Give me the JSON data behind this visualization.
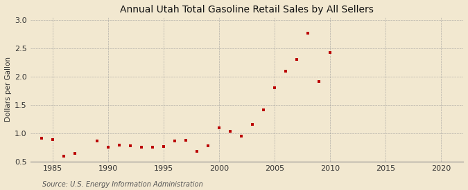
{
  "title": "Annual Utah Total Gasoline Retail Sales by All Sellers",
  "ylabel": "Dollars per Gallon",
  "source": "Source: U.S. Energy Information Administration",
  "background_color": "#f2e8d0",
  "plot_bg_color": "#f2e8d0",
  "marker_color": "#bb0000",
  "xlim": [
    1983,
    2022
  ],
  "ylim": [
    0.5,
    3.05
  ],
  "xticks": [
    1985,
    1990,
    1995,
    2000,
    2005,
    2010,
    2015,
    2020
  ],
  "yticks": [
    0.5,
    1.0,
    1.5,
    2.0,
    2.5,
    3.0
  ],
  "years": [
    1984,
    1985,
    1986,
    1987,
    1989,
    1990,
    1991,
    1992,
    1993,
    1994,
    1995,
    1996,
    1997,
    1998,
    1999,
    2000,
    2001,
    2002,
    2003,
    2004,
    2005,
    2006,
    2007,
    2008,
    2009,
    2010
  ],
  "values": [
    0.91,
    0.89,
    0.6,
    0.65,
    0.87,
    0.76,
    0.79,
    0.78,
    0.76,
    0.75,
    0.77,
    0.87,
    0.88,
    0.68,
    0.78,
    1.1,
    1.04,
    0.95,
    1.16,
    1.42,
    1.8,
    2.1,
    2.31,
    2.77,
    1.92,
    2.43
  ]
}
